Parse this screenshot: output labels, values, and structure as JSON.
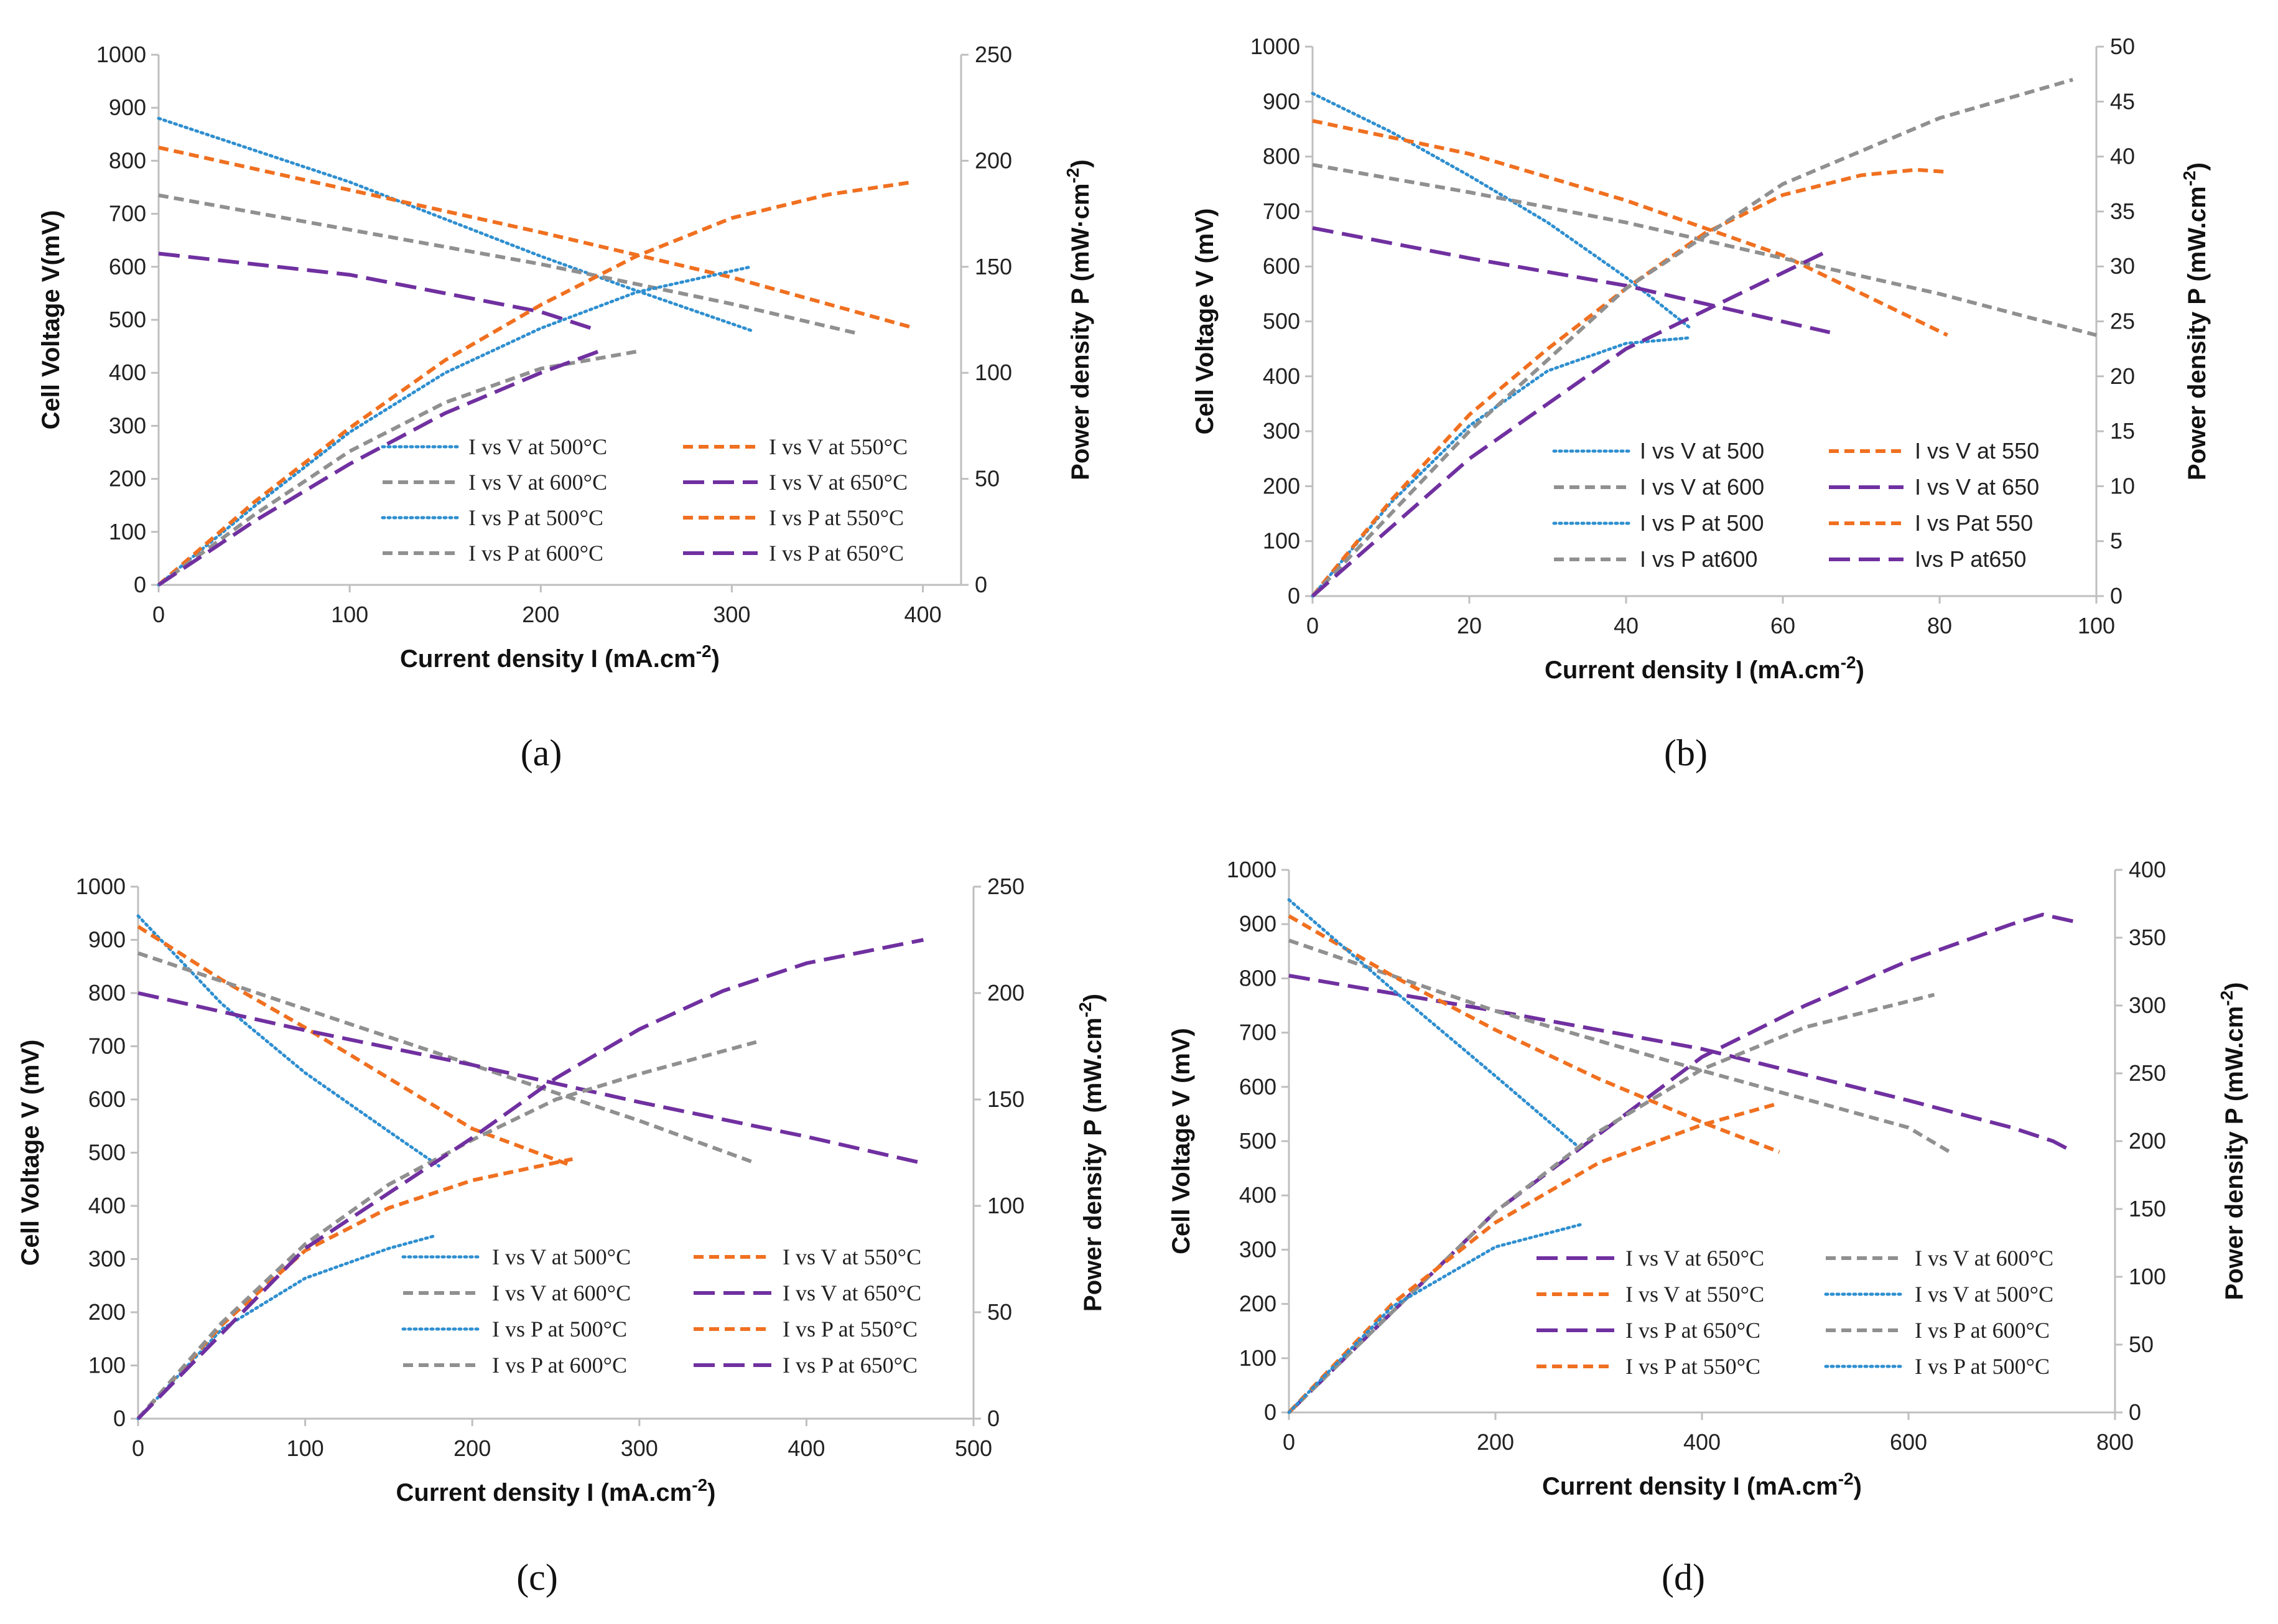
{
  "colors": {
    "blue": "#2f8fd0",
    "orange": "#f07020",
    "gray": "#909090",
    "purple": "#7030a0",
    "axis": "#bfbfbf",
    "text": "#222222"
  },
  "chart_data": [
    {
      "panel_label": "(a)",
      "type": "line",
      "xlabel": "Current density I (mA.cm",
      "xlabel_sup": "-2",
      "xlabel_close": ")",
      "ylabel": "Cell Voltage V(mV)",
      "y2label": "Power density P (mW·cm",
      "y2label_sup": "-2",
      "y2label_close": ")",
      "xlim": [
        0,
        420
      ],
      "xticks": [
        0,
        100,
        200,
        300,
        400
      ],
      "ylim": [
        0,
        1000
      ],
      "yticks": [
        0,
        100,
        200,
        300,
        400,
        500,
        600,
        700,
        800,
        900,
        1000
      ],
      "y2lim": [
        0,
        250
      ],
      "y2ticks": [
        0,
        50,
        100,
        150,
        200,
        250
      ],
      "legend_font": "serif",
      "legend_order": [
        "v500",
        "v550",
        "v600",
        "v650",
        "p500",
        "p550",
        "p600",
        "p650"
      ],
      "series": [
        {
          "id": "v500",
          "name": "I vs V at 500°C",
          "axis": "left",
          "color": "blue",
          "style": "dot",
          "x": [
            0,
            100,
            200,
            250,
            310
          ],
          "y": [
            880,
            760,
            620,
            555,
            480
          ]
        },
        {
          "id": "v550",
          "name": "I vs V at 550°C",
          "axis": "left",
          "color": "orange",
          "style": "dash",
          "x": [
            0,
            100,
            200,
            300,
            395
          ],
          "y": [
            825,
            745,
            665,
            580,
            485
          ]
        },
        {
          "id": "v600",
          "name": "I vs V at 600°C",
          "axis": "left",
          "color": "gray",
          "style": "dash",
          "x": [
            0,
            100,
            200,
            300,
            365
          ],
          "y": [
            735,
            670,
            605,
            530,
            475
          ]
        },
        {
          "id": "v650",
          "name": "I vs V at 650°C",
          "axis": "left",
          "color": "purple",
          "style": "longdash",
          "x": [
            0,
            100,
            200,
            230
          ],
          "y": [
            625,
            585,
            515,
            480
          ]
        },
        {
          "id": "p500",
          "name": "I vs P at 500°C",
          "axis": "right",
          "color": "blue",
          "style": "dot",
          "x": [
            0,
            50,
            100,
            150,
            200,
            250,
            310
          ],
          "y": [
            0,
            37,
            72,
            100,
            121,
            138,
            150
          ]
        },
        {
          "id": "p550",
          "name": "I vs P at 550°C",
          "axis": "right",
          "color": "orange",
          "style": "dash",
          "x": [
            0,
            50,
            100,
            150,
            200,
            250,
            300,
            350,
            395
          ],
          "y": [
            0,
            39,
            74,
            106,
            132,
            155,
            173,
            184,
            190
          ]
        },
        {
          "id": "p600",
          "name": "I vs P at 600°C",
          "axis": "right",
          "color": "gray",
          "style": "dash",
          "x": [
            0,
            50,
            100,
            150,
            200,
            250
          ],
          "y": [
            0,
            33,
            63,
            86,
            102,
            110
          ]
        },
        {
          "id": "p650",
          "name": "I vs P at 650°C",
          "axis": "right",
          "color": "purple",
          "style": "longdash",
          "x": [
            0,
            50,
            100,
            150,
            200,
            230
          ],
          "y": [
            0,
            30,
            57,
            81,
            100,
            110
          ]
        }
      ]
    },
    {
      "panel_label": "(b)",
      "type": "line",
      "xlabel": "Current density I (mA.cm",
      "xlabel_sup": "-2",
      "xlabel_close": ")",
      "ylabel": "Cell Voltage V (mV)",
      "y2label": "Power density P (mW.cm",
      "y2label_sup": "-2",
      "y2label_close": ")",
      "xlim": [
        0,
        100
      ],
      "xticks": [
        0,
        20,
        40,
        60,
        80,
        100
      ],
      "ylim": [
        0,
        1000
      ],
      "yticks": [
        0,
        100,
        200,
        300,
        400,
        500,
        600,
        700,
        800,
        900,
        1000
      ],
      "y2lim": [
        0,
        50
      ],
      "y2ticks": [
        0,
        5,
        10,
        15,
        20,
        25,
        30,
        35,
        40,
        45,
        50
      ],
      "legend_font": "sans",
      "legend_order": [
        "v500",
        "v550",
        "v600",
        "v650",
        "p500",
        "p550",
        "p600",
        "p650"
      ],
      "series": [
        {
          "id": "v500",
          "name": "I vs V at 500",
          "axis": "left",
          "color": "blue",
          "style": "dot",
          "x": [
            0,
            10,
            20,
            30,
            40,
            48
          ],
          "y": [
            915,
            845,
            765,
            680,
            580,
            490
          ]
        },
        {
          "id": "v550",
          "name": "I vs V at 550",
          "axis": "left",
          "color": "orange",
          "style": "dash",
          "x": [
            0,
            20,
            40,
            60,
            81
          ],
          "y": [
            865,
            805,
            720,
            620,
            475
          ]
        },
        {
          "id": "v600",
          "name": "I vs V at 600",
          "axis": "left",
          "color": "gray",
          "style": "dash",
          "x": [
            0,
            20,
            40,
            60,
            80,
            100
          ],
          "y": [
            785,
            735,
            680,
            615,
            550,
            475
          ]
        },
        {
          "id": "v650",
          "name": "I vs V at 650",
          "axis": "left",
          "color": "purple",
          "style": "longdash",
          "x": [
            0,
            20,
            40,
            66
          ],
          "y": [
            670,
            615,
            565,
            480
          ]
        },
        {
          "id": "p500",
          "name": "I vs P at 500",
          "axis": "right",
          "color": "blue",
          "style": "dot",
          "x": [
            0,
            10,
            20,
            30,
            40,
            48
          ],
          "y": [
            0,
            8.5,
            15.5,
            20.5,
            23,
            23.5
          ]
        },
        {
          "id": "p550",
          "name": "I vs Pat 550",
          "axis": "right",
          "color": "orange",
          "style": "dash",
          "x": [
            0,
            10,
            20,
            30,
            40,
            50,
            60,
            70,
            77,
            81
          ],
          "y": [
            0,
            8.7,
            16.5,
            22.5,
            28,
            33,
            36.5,
            38.3,
            38.8,
            38.6
          ]
        },
        {
          "id": "p600",
          "name": "I vs P at600",
          "axis": "right",
          "color": "gray",
          "style": "dash",
          "x": [
            0,
            20,
            40,
            60,
            80,
            97
          ],
          "y": [
            0,
            15,
            28,
            37.5,
            43.5,
            47
          ]
        },
        {
          "id": "p650",
          "name": "Ivs P at650",
          "axis": "right",
          "color": "purple",
          "style": "longdash",
          "x": [
            0,
            20,
            40,
            66
          ],
          "y": [
            0,
            12.5,
            22.5,
            31.5
          ]
        }
      ]
    },
    {
      "panel_label": "(c)",
      "type": "line",
      "xlabel": "Current density I (mA.cm",
      "xlabel_sup": "-2",
      "xlabel_close": ")",
      "ylabel": "Cell Voltage V (mV)",
      "y2label": "Power density P (mW.cm",
      "y2label_sup": "-2",
      "y2label_close": ")",
      "xlim": [
        0,
        500
      ],
      "xticks": [
        0,
        100,
        200,
        300,
        400,
        500
      ],
      "ylim": [
        0,
        1000
      ],
      "yticks": [
        0,
        100,
        200,
        300,
        400,
        500,
        600,
        700,
        800,
        900,
        1000
      ],
      "y2lim": [
        0,
        250
      ],
      "y2ticks": [
        0,
        50,
        100,
        150,
        200,
        250
      ],
      "legend_font": "serif",
      "legend_order": [
        "v500",
        "v550",
        "v600",
        "v650",
        "p500",
        "p550",
        "p600",
        "p650"
      ],
      "series": [
        {
          "id": "v500",
          "name": "I vs V at 500°C",
          "axis": "left",
          "color": "blue",
          "style": "dot",
          "x": [
            0,
            50,
            100,
            150,
            180
          ],
          "y": [
            945,
            780,
            650,
            540,
            475
          ]
        },
        {
          "id": "v550",
          "name": "I vs V at 550°C",
          "axis": "left",
          "color": "orange",
          "style": "dash",
          "x": [
            0,
            50,
            100,
            150,
            200,
            260
          ],
          "y": [
            925,
            825,
            735,
            640,
            545,
            475
          ]
        },
        {
          "id": "v600",
          "name": "I vs V at 600°C",
          "axis": "left",
          "color": "gray",
          "style": "dash",
          "x": [
            0,
            100,
            200,
            300,
            370
          ],
          "y": [
            875,
            770,
            665,
            560,
            480
          ]
        },
        {
          "id": "v650",
          "name": "I vs V at 650°C",
          "axis": "left",
          "color": "purple",
          "style": "longdash",
          "x": [
            0,
            100,
            200,
            300,
            400,
            470
          ],
          "y": [
            800,
            730,
            665,
            595,
            530,
            480
          ]
        },
        {
          "id": "p500",
          "name": "I vs P at 500°C",
          "axis": "right",
          "color": "blue",
          "style": "dot",
          "x": [
            0,
            50,
            100,
            150,
            178
          ],
          "y": [
            0,
            42,
            66,
            80,
            86
          ]
        },
        {
          "id": "p550",
          "name": "I vs P at 550°C",
          "axis": "right",
          "color": "orange",
          "style": "dash",
          "x": [
            0,
            50,
            100,
            150,
            200,
            260
          ],
          "y": [
            0,
            44,
            79,
            99,
            112,
            122
          ]
        },
        {
          "id": "p600",
          "name": "I vs P at 600°C",
          "axis": "right",
          "color": "gray",
          "style": "dash",
          "x": [
            0,
            50,
            100,
            150,
            200,
            250,
            300,
            370
          ],
          "y": [
            0,
            45,
            82,
            110,
            131,
            150,
            162,
            177
          ]
        },
        {
          "id": "p650",
          "name": "I vs P at 650°C",
          "axis": "right",
          "color": "purple",
          "style": "longdash",
          "x": [
            0,
            100,
            200,
            250,
            300,
            350,
            400,
            470
          ],
          "y": [
            0,
            80,
            132,
            160,
            183,
            201,
            214,
            225
          ]
        }
      ]
    },
    {
      "panel_label": "(d)",
      "type": "line",
      "xlabel": "Current density I (mA.cm",
      "xlabel_sup": "-2",
      "xlabel_close": ")",
      "ylabel": "Cell Voltage V (mV)",
      "y2label": "Power density P (mW.cm",
      "y2label_sup": "-2",
      "y2label_close": ")",
      "xlim": [
        0,
        800
      ],
      "xticks": [
        0,
        200,
        400,
        600,
        800
      ],
      "ylim": [
        0,
        1000
      ],
      "yticks": [
        0,
        100,
        200,
        300,
        400,
        500,
        600,
        700,
        800,
        900,
        1000
      ],
      "y2lim": [
        0,
        400
      ],
      "y2ticks": [
        0,
        50,
        100,
        150,
        200,
        250,
        300,
        350,
        400
      ],
      "legend_font": "serif",
      "legend_order": [
        "v650",
        "v600",
        "v550",
        "v500",
        "p650",
        "p600",
        "p550",
        "p500"
      ],
      "series": [
        {
          "id": "v650",
          "name": "I vs V at 650°C",
          "axis": "left",
          "color": "purple",
          "style": "longdash",
          "x": [
            0,
            200,
            400,
            600,
            700,
            740,
            760
          ],
          "y": [
            805,
            740,
            670,
            575,
            525,
            500,
            480
          ]
        },
        {
          "id": "v600",
          "name": "I vs V at 600°C",
          "axis": "left",
          "color": "gray",
          "style": "dash",
          "x": [
            0,
            200,
            400,
            600,
            640
          ],
          "y": [
            870,
            740,
            630,
            525,
            480
          ]
        },
        {
          "id": "v550",
          "name": "I vs V at 550°C",
          "axis": "left",
          "color": "orange",
          "style": "dash",
          "x": [
            0,
            100,
            200,
            300,
            400,
            475
          ],
          "y": [
            915,
            805,
            705,
            615,
            535,
            480
          ]
        },
        {
          "id": "v500",
          "name": "I vs V at 500°C",
          "axis": "left",
          "color": "blue",
          "style": "dot",
          "x": [
            0,
            100,
            200,
            280
          ],
          "y": [
            945,
            780,
            620,
            490
          ]
        },
        {
          "id": "p650",
          "name": "I vs P at 650°C",
          "axis": "right",
          "color": "purple",
          "style": "longdash",
          "x": [
            0,
            200,
            300,
            400,
            500,
            600,
            700,
            730,
            760
          ],
          "y": [
            0,
            148,
            205,
            262,
            300,
            333,
            360,
            367,
            362
          ]
        },
        {
          "id": "p600",
          "name": "I vs P at 600°C",
          "axis": "right",
          "color": "gray",
          "style": "dash",
          "x": [
            0,
            200,
            300,
            400,
            500,
            625
          ],
          "y": [
            0,
            148,
            207,
            253,
            284,
            308
          ]
        },
        {
          "id": "p550",
          "name": "I vs P at 550°C",
          "axis": "right",
          "color": "orange",
          "style": "dash",
          "x": [
            0,
            100,
            200,
            300,
            400,
            475
          ],
          "y": [
            0,
            80,
            140,
            184,
            212,
            228
          ]
        },
        {
          "id": "p500",
          "name": "I vs P at 500°C",
          "axis": "right",
          "color": "blue",
          "style": "dot",
          "x": [
            0,
            100,
            200,
            285
          ],
          "y": [
            0,
            78,
            122,
            139
          ]
        }
      ]
    }
  ]
}
